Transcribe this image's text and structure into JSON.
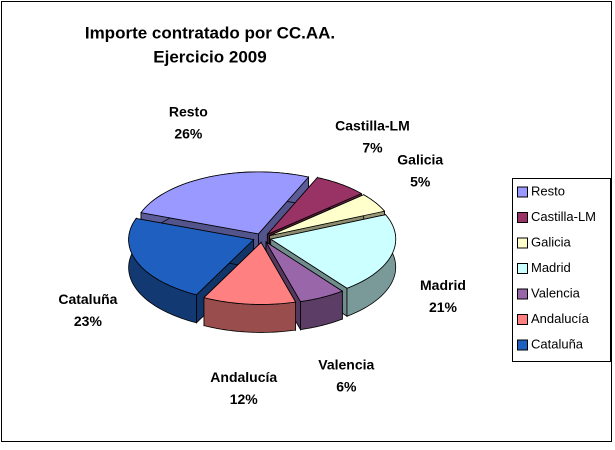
{
  "chart_data": {
    "type": "pie3d",
    "title": "Importe contratado por CC.AA.",
    "subtitle": "Ejercicio 2009",
    "categories": [
      "Resto",
      "Castilla-LM",
      "Galicia",
      "Madrid",
      "Valencia",
      "Andalucía",
      "Cataluña"
    ],
    "values": [
      26,
      7,
      5,
      21,
      6,
      12,
      23
    ],
    "value_labels": [
      "26%",
      "7%",
      "5%",
      "21%",
      "6%",
      "12%",
      "23%"
    ],
    "colors": [
      "#9999ff",
      "#993366",
      "#ffffcc",
      "#ccffff",
      "#9966aa",
      "#ff8080",
      "#1f5fbf"
    ],
    "legend": "right"
  }
}
